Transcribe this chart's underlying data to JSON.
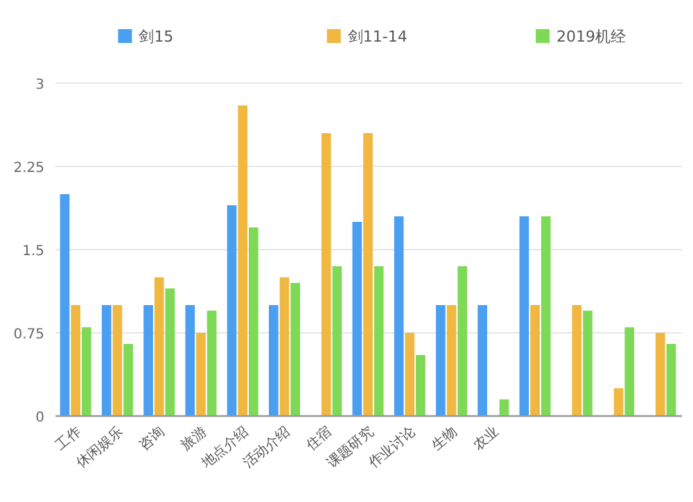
{
  "chart_data": {
    "type": "bar",
    "categories": [
      "工作",
      "休闲娱乐",
      "咨询",
      "旅游",
      "地点介绍",
      "活动介绍",
      "住宿",
      "课题研究",
      "作业讨论",
      "生物",
      "农业",
      null,
      null,
      null,
      null
    ],
    "series": [
      {
        "name": "剑15",
        "color": "#4a9ff0",
        "values": [
          2,
          1,
          1,
          1,
          1.9,
          1,
          null,
          1.75,
          1.8,
          1,
          1,
          1.8,
          null,
          null,
          null
        ]
      },
      {
        "name": "剑11-14",
        "color": "#f0b840",
        "values": [
          1,
          1,
          1.25,
          0.75,
          2.8,
          1.25,
          2.55,
          2.55,
          0.75,
          1,
          null,
          1,
          1,
          0.25,
          0.75
        ]
      },
      {
        "name": "2019机经",
        "color": "#7ed957",
        "values": [
          0.8,
          0.65,
          1.15,
          0.95,
          1.7,
          1.2,
          1.35,
          1.35,
          0.55,
          1.35,
          0.15,
          1.8,
          0.95,
          0.8,
          0.65
        ]
      }
    ],
    "ylim": [
      0,
      3
    ],
    "yticks": [
      0,
      0.75,
      1.5,
      2.25,
      3
    ],
    "grid": "y",
    "legend": "top"
  }
}
